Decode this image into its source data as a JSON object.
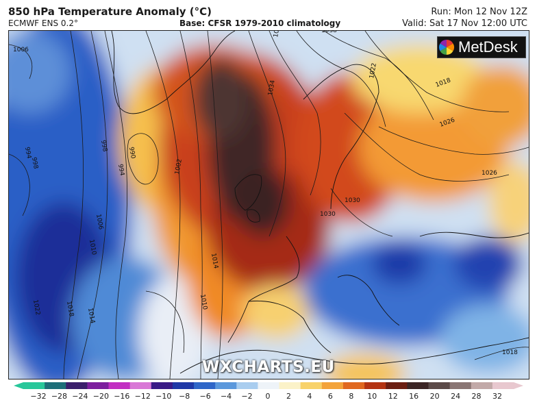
{
  "header": {
    "title": "850 hPa Temperature Anomaly (°C)",
    "model": "ECMWF ENS 0.2°",
    "base": "Base: CFSR 1979-2010 climatology",
    "run": "Run: Mon 12 Nov 12Z",
    "valid": "Valid: Sat 17 Nov 12:00 UTC"
  },
  "brand": {
    "logo_text": "MetDesk",
    "watermark": "WXCHARTS.EU"
  },
  "isobars": [
    {
      "label": "1006"
    },
    {
      "label": "998"
    },
    {
      "label": "994"
    },
    {
      "label": "990"
    },
    {
      "label": "998"
    },
    {
      "label": "994"
    },
    {
      "label": "1002"
    },
    {
      "label": "1006"
    },
    {
      "label": "1010"
    },
    {
      "label": "1014"
    },
    {
      "label": "1010"
    },
    {
      "label": "1018"
    },
    {
      "label": "1014"
    },
    {
      "label": "1022"
    },
    {
      "label": "1034"
    },
    {
      "label": "1038"
    },
    {
      "label": "1030"
    },
    {
      "label": "1022"
    },
    {
      "label": "1018"
    },
    {
      "label": "1026"
    },
    {
      "label": "1018"
    },
    {
      "label": "1018"
    },
    {
      "label": "1026"
    },
    {
      "label": "1030"
    }
  ],
  "colorbar": {
    "ticks": [
      "−32",
      "−28",
      "−24",
      "−20",
      "−16",
      "−12",
      "−10",
      "−8",
      "−6",
      "−4",
      "−2",
      "0",
      "2",
      "4",
      "6",
      "8",
      "10",
      "12",
      "16",
      "20",
      "24",
      "28",
      "32"
    ],
    "colors": [
      "#28c79a",
      "#1d6e79",
      "#3a1e6b",
      "#7d1e9e",
      "#c22fc2",
      "#d978d6",
      "#3a1a86",
      "#1f38a6",
      "#2f66c8",
      "#5b98dc",
      "#a9cdef",
      "#eef3f8",
      "#fbf2c8",
      "#f8d26a",
      "#f3a33a",
      "#e0681f",
      "#b43312",
      "#6b1e12",
      "#3c2525",
      "#5c4a48",
      "#8a7573",
      "#c2a9a8",
      "#e8c8cf"
    ]
  },
  "colors": {
    "cold_deep": "#1f38a6",
    "cold": "#5b98dc",
    "neutral": "#eef3f8",
    "warm": "#f3a33a",
    "hot": "#b43312",
    "extreme": "#3c2525"
  }
}
